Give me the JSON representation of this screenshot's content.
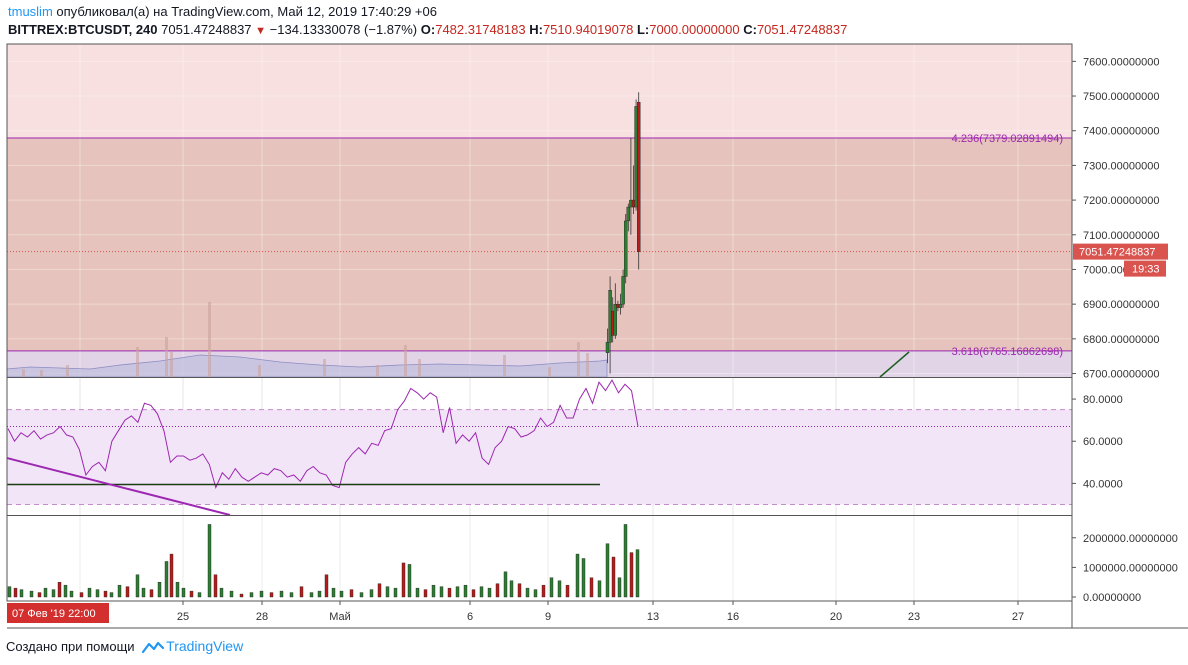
{
  "header": {
    "user": "tmuslim",
    "published_text": "опубликовал(а) на TradingView.com, Май 12, 2019 17:40:29 +06",
    "symbol": "BITTREX:BTCUSDT, 240",
    "price": "7051.47248837",
    "change": "−134.13330078 (−1.87%)",
    "o_label": "O:",
    "o_value": "7482.31748183",
    "h_label": "H:",
    "h_value": "7510.94019078",
    "l_label": "L:",
    "l_value": "7000.00000000",
    "c_label": "C:",
    "c_value": "7051.47248837"
  },
  "footer": {
    "created_with": "Создано при помощи",
    "brand": "TradingView"
  },
  "colors": {
    "up": "#2e7d32",
    "down": "#b71c1c",
    "fib_upper": "#f8dfe0",
    "fib_lower": "#e6c3bc",
    "fib_line": "#9c27b0",
    "rsi_band": "#f3e5f8",
    "rsi_line": "#9c27b0",
    "price_label": "#d9534f"
  },
  "chart_data": {
    "type": "candlestick",
    "price_axis_labels": [
      "7600.00000000",
      "7500.00000000",
      "7400.00000000",
      "7300.00000000",
      "7200.00000000",
      "7100.00000000",
      "7000.00000000",
      "6900.00000000",
      "6800.00000000",
      "6700.00000000"
    ],
    "price_ticks": [
      7600,
      7500,
      7400,
      7300,
      7200,
      7100,
      7000,
      6900,
      6800,
      6700
    ],
    "price_range": [
      6690,
      7650
    ],
    "last_price_label": "7051.47248837",
    "last_price": 7051.47248837,
    "countdown_label": "19:33",
    "fib_levels": [
      {
        "label": "4.236(7379.02891494)",
        "value": 7379.02891494
      },
      {
        "label": "3.618(6765.16862698)",
        "value": 6765.16862698
      }
    ],
    "candles": [
      {
        "o": 6760,
        "h": 6830,
        "l": 6730,
        "c": 6790
      },
      {
        "o": 6790,
        "h": 6980,
        "l": 6700,
        "c": 6940
      },
      {
        "o": 6880,
        "h": 6920,
        "l": 6790,
        "c": 6810
      },
      {
        "o": 6810,
        "h": 6960,
        "l": 6800,
        "c": 6900
      },
      {
        "o": 6900,
        "h": 6910,
        "l": 6880,
        "c": 6890
      },
      {
        "o": 6890,
        "h": 6930,
        "l": 6870,
        "c": 6900
      },
      {
        "o": 6900,
        "h": 7000,
        "l": 6890,
        "c": 6980
      },
      {
        "o": 6980,
        "h": 7160,
        "l": 6960,
        "c": 7140
      },
      {
        "o": 7140,
        "h": 7190,
        "l": 7110,
        "c": 7180
      },
      {
        "o": 7180,
        "h": 7380,
        "l": 7100,
        "c": 7200
      },
      {
        "o": 7200,
        "h": 7300,
        "l": 7160,
        "c": 7180
      },
      {
        "o": 7180,
        "h": 7490,
        "l": 7170,
        "c": 7470
      },
      {
        "o": 7482.31748183,
        "h": 7510.94019078,
        "l": 7000,
        "c": 7051.47248837
      }
    ],
    "date_labels": [
      "25",
      "28",
      "Май",
      "6",
      "9",
      "13",
      "16",
      "20",
      "23",
      "27"
    ],
    "date_axis_left_label": "07 Фев '19   22:00",
    "rsi": {
      "axis_labels": [
        "80.0000",
        "60.0000",
        "40.0000"
      ],
      "ticks": [
        80,
        60,
        40
      ],
      "range": [
        25,
        90
      ],
      "upper_band": 75,
      "lower_band": 30,
      "midline": 67,
      "support_level": 39.5,
      "values": [
        66,
        60,
        64,
        62,
        65,
        61,
        63,
        64,
        67,
        63,
        62,
        56,
        44,
        48,
        50,
        46,
        60,
        65,
        70,
        72,
        69,
        78,
        77,
        73,
        65,
        50,
        53,
        53,
        51,
        52,
        54,
        49,
        38,
        45,
        42,
        47,
        43,
        41,
        43,
        45,
        44,
        47,
        46,
        43,
        44,
        41,
        46,
        48,
        45,
        44,
        39,
        38,
        50,
        54,
        57,
        54,
        59,
        58,
        65,
        66,
        75,
        79,
        85,
        83,
        80,
        83,
        81,
        64,
        76,
        59,
        63,
        60,
        64,
        52,
        49,
        57,
        60,
        67,
        66,
        62,
        63,
        65,
        71,
        67,
        69,
        77,
        71,
        71,
        80,
        85,
        78,
        88,
        84,
        89,
        83,
        87,
        84,
        67
      ],
      "trendline_start": 52,
      "trendline_end": 25
    },
    "volume": {
      "axis_labels": [
        "2000000.00000000",
        "1000000.00000000",
        "0.00000000"
      ],
      "ticks": [
        2000000,
        1000000,
        0
      ],
      "range": [
        0,
        2600000
      ]
    }
  }
}
